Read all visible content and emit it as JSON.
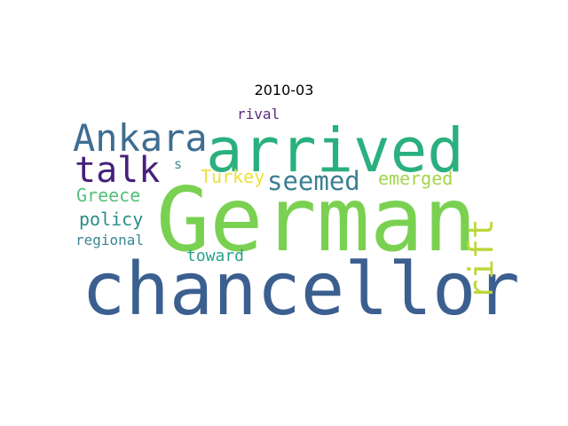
{
  "chart_data": {
    "type": "wordcloud",
    "title": "2010-03",
    "words": [
      {
        "text": "German",
        "weight": 1.0,
        "color": "#7ad151",
        "rotate": 0
      },
      {
        "text": "chancellor",
        "weight": 0.95,
        "color": "#3b5f8f",
        "rotate": 0
      },
      {
        "text": "arrived",
        "weight": 0.82,
        "color": "#2ab07f",
        "rotate": 0
      },
      {
        "text": "Ankara",
        "weight": 0.52,
        "color": "#3e6e91",
        "rotate": 0
      },
      {
        "text": "talk",
        "weight": 0.5,
        "color": "#45207a",
        "rotate": 0
      },
      {
        "text": "rift",
        "weight": 0.42,
        "color": "#bcd73a",
        "rotate": -90
      },
      {
        "text": "seemed",
        "weight": 0.35,
        "color": "#3b7f91",
        "rotate": 0
      },
      {
        "text": "emerged",
        "weight": 0.24,
        "color": "#a1d549",
        "rotate": 0
      },
      {
        "text": "Turkey",
        "weight": 0.24,
        "color": "#ece23a",
        "rotate": 0
      },
      {
        "text": "Greece",
        "weight": 0.24,
        "color": "#53c07a",
        "rotate": 0
      },
      {
        "text": "policy",
        "weight": 0.24,
        "color": "#2b8c8c",
        "rotate": 0
      },
      {
        "text": "toward",
        "weight": 0.22,
        "color": "#2aa287",
        "rotate": 0
      },
      {
        "text": "regional",
        "weight": 0.18,
        "color": "#3a8794",
        "rotate": 0
      },
      {
        "text": "rival",
        "weight": 0.17,
        "color": "#5a2c7c",
        "rotate": 0
      },
      {
        "text": "s",
        "weight": 0.17,
        "color": "#3e8c96",
        "rotate": 0
      }
    ]
  }
}
